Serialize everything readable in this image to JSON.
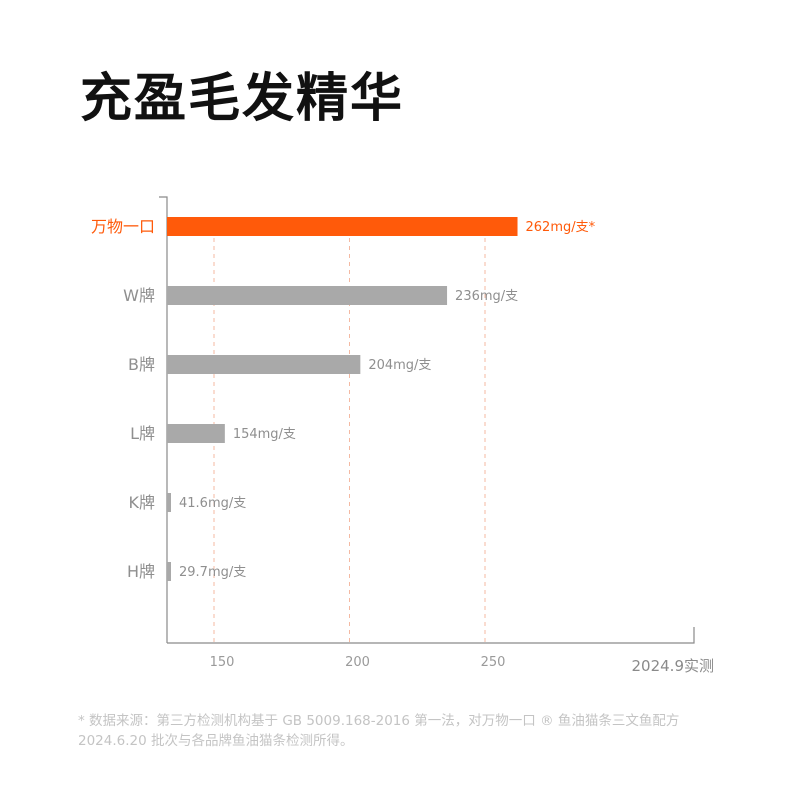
{
  "title": "充盈毛发精华",
  "chart_data": {
    "type": "bar",
    "orientation": "horizontal",
    "categories": [
      "万物一口",
      "W牌",
      "B牌",
      "L牌",
      "K牌",
      "H牌"
    ],
    "values": [
      262,
      236,
      204,
      154,
      41.6,
      29.7
    ],
    "value_labels": [
      "262mg/支*",
      "236mg/支",
      "204mg/支",
      "154mg/支",
      "41.6mg/支",
      "29.7mg/支"
    ],
    "highlight_index": 0,
    "x_ticks": [
      150,
      200,
      250
    ],
    "x_note": "2024.9实测",
    "gridlines": "dashed",
    "colors": {
      "highlight": "#ff5a0a",
      "bar": "#a9a9a9",
      "grid": "#f4b9a2",
      "axis": "#8a8a8a",
      "tick": "#9a9a9a"
    }
  },
  "footnote": {
    "line1": "* 数据来源：第三方检测机构基于 GB 5009.168-2016 第一法，对万物一口 ® 鱼油猫条三文鱼配方",
    "line2": "2024.6.20 批次与各品牌鱼油猫条检测所得。"
  }
}
